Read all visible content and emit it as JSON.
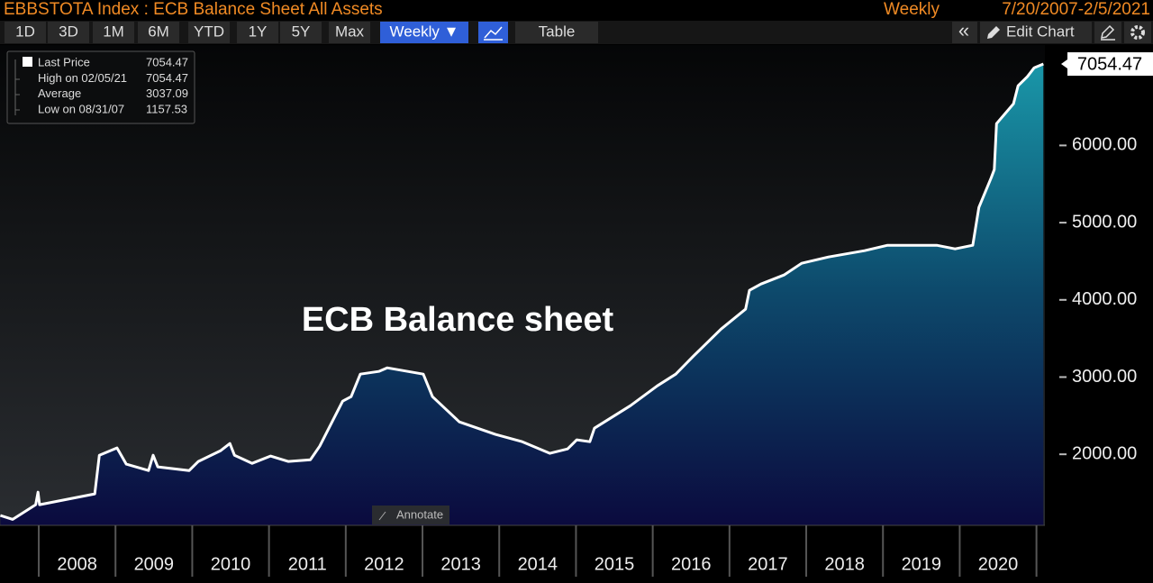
{
  "header": {
    "frequency": "Weekly",
    "range": "7/20/2007-2/5/2021"
  },
  "toolbar": {
    "periods": [
      "1D",
      "3D",
      "1M",
      "6M",
      "YTD",
      "1Y",
      "5Y",
      "Max"
    ],
    "frequency_button": "Weekly ▼",
    "table_button": "Table",
    "collapse": "«",
    "edit_chart": "Edit Chart"
  },
  "annotate_button": "Annotate",
  "chart_data": {
    "type": "area",
    "title": "EBBSTOTA Index : ECB Balance Sheet All Assets",
    "annotations": [
      "ECB Balance sheet"
    ],
    "legend": [
      {
        "label": "Last Price",
        "value": 7054.47
      },
      {
        "label": "High on 02/05/21",
        "value": 7054.47
      },
      {
        "label": "Average",
        "value": 3037.09
      },
      {
        "label": "Low on 08/31/07",
        "value": 1157.53
      }
    ],
    "x": [
      2007.5,
      2007.66,
      2007.96,
      2007.99,
      2008.01,
      2008.73,
      2008.79,
      2009.02,
      2009.14,
      2009.43,
      2009.49,
      2009.55,
      2009.96,
      2010.08,
      2010.37,
      2010.49,
      2010.55,
      2010.78,
      2011.02,
      2011.25,
      2011.54,
      2011.66,
      2011.78,
      2011.96,
      2012.07,
      2012.19,
      2012.43,
      2012.54,
      2013.01,
      2013.13,
      2013.48,
      2013.95,
      2014.3,
      2014.66,
      2014.89,
      2015.01,
      2015.18,
      2015.24,
      2015.71,
      2016.06,
      2016.3,
      2016.53,
      2016.89,
      2017.21,
      2017.26,
      2017.41,
      2017.71,
      2017.94,
      2018.29,
      2018.76,
      2019.06,
      2019.7,
      2019.94,
      2020.17,
      2020.25,
      2020.41,
      2020.45,
      2020.48,
      2020.7,
      2020.76,
      2020.88,
      2020.97,
      2021.09
    ],
    "series": [
      {
        "name": "Last Price",
        "color": "#ffffff",
        "values": [
          1207,
          1157.53,
          1347,
          1510,
          1347,
          1487,
          1988,
          2082,
          1872,
          1790,
          1988,
          1837,
          1790,
          1907,
          2047,
          2140,
          1988,
          1883,
          1977,
          1907,
          1930,
          2105,
          2338,
          2688,
          2747,
          3038,
          3073,
          3120,
          3038,
          2747,
          2420,
          2257,
          2163,
          2012,
          2070,
          2187,
          2163,
          2338,
          2630,
          2887,
          3038,
          3272,
          3622,
          3879,
          4124,
          4205,
          4322,
          4474,
          4555,
          4637,
          4707,
          4707,
          4660,
          4707,
          5197,
          5582,
          5687,
          6282,
          6539,
          6772,
          6889,
          7006,
          7054.47
        ]
      }
    ],
    "xlim": [
      2007.495,
      2021.11
    ],
    "ylim": [
      1080,
      7300
    ],
    "xticks": [
      {
        "value": 2008.5,
        "label": "2008"
      },
      {
        "value": 2009.5,
        "label": "2009"
      },
      {
        "value": 2010.5,
        "label": "2010"
      },
      {
        "value": 2011.5,
        "label": "2011"
      },
      {
        "value": 2012.5,
        "label": "2012"
      },
      {
        "value": 2013.5,
        "label": "2013"
      },
      {
        "value": 2014.5,
        "label": "2014"
      },
      {
        "value": 2015.5,
        "label": "2015"
      },
      {
        "value": 2016.5,
        "label": "2016"
      },
      {
        "value": 2017.5,
        "label": "2017"
      },
      {
        "value": 2018.5,
        "label": "2018"
      },
      {
        "value": 2019.5,
        "label": "2019"
      },
      {
        "value": 2020.5,
        "label": "2020"
      }
    ],
    "yticks": [
      {
        "value": 2000,
        "label": "2000.00"
      },
      {
        "value": 3000,
        "label": "3000.00"
      },
      {
        "value": 4000,
        "label": "4000.00"
      },
      {
        "value": 5000,
        "label": "5000.00"
      },
      {
        "value": 6000,
        "label": "6000.00"
      }
    ],
    "grid": false
  }
}
